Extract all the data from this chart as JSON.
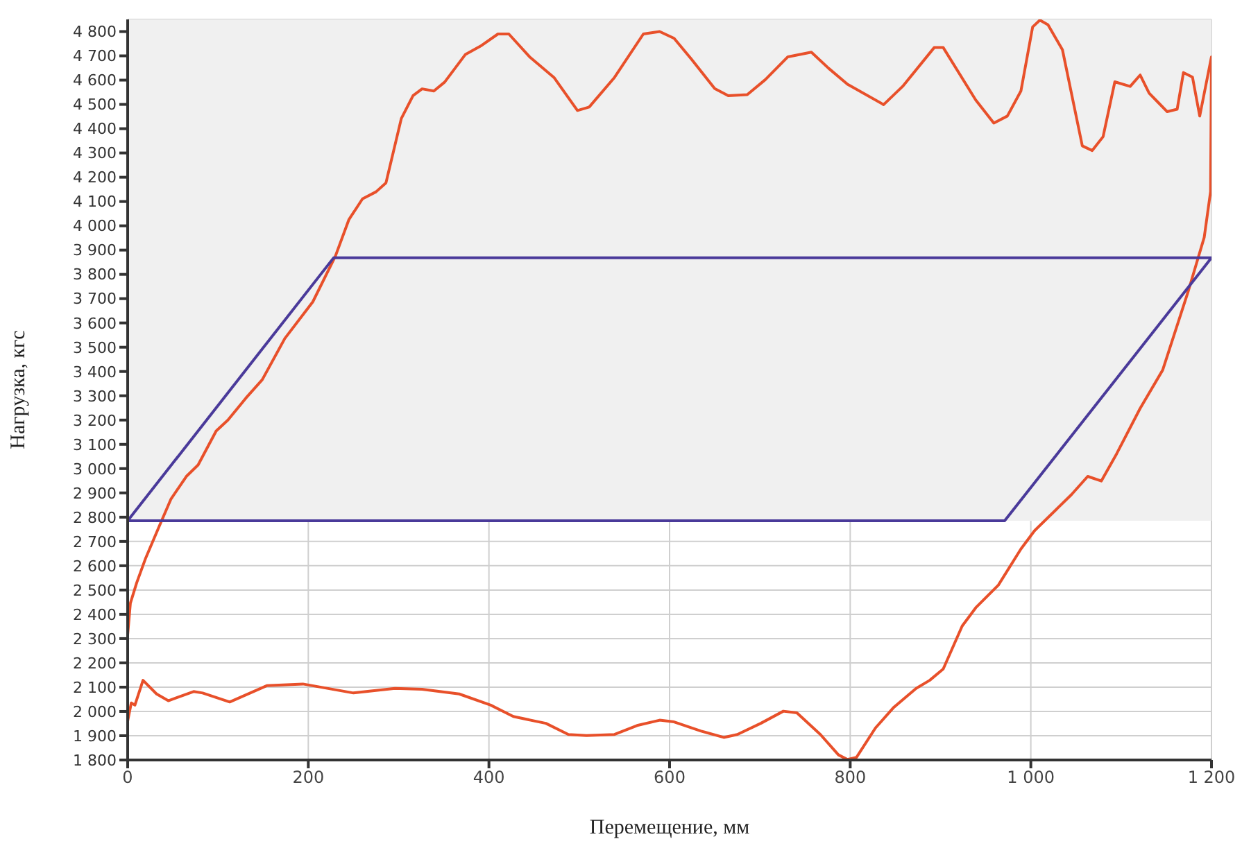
{
  "chart_data": {
    "type": "line",
    "xlabel": "Перемещение, мм",
    "ylabel": "Нагрузка, кгс",
    "xlim": [
      0,
      1200
    ],
    "ylim": [
      1800,
      4850
    ],
    "xticks": [
      0,
      200,
      400,
      600,
      800,
      {
        "value": 1000,
        "label": "1 000"
      },
      {
        "value": 1200,
        "label": "1 200"
      }
    ],
    "yticks": [
      {
        "value": 1800,
        "label": "1 800"
      },
      {
        "value": 1900,
        "label": "1 900"
      },
      {
        "value": 2000,
        "label": "2 000"
      },
      {
        "value": 2100,
        "label": "2 100"
      },
      {
        "value": 2200,
        "label": "2 200"
      },
      {
        "value": 2300,
        "label": "2 300"
      },
      {
        "value": 2400,
        "label": "2 400"
      },
      {
        "value": 2500,
        "label": "2 500"
      },
      {
        "value": 2600,
        "label": "2 600"
      },
      {
        "value": 2700,
        "label": "2 700"
      },
      {
        "value": 2800,
        "label": "2 800"
      },
      {
        "value": 2900,
        "label": "2 900"
      },
      {
        "value": 3000,
        "label": "3 000"
      },
      {
        "value": 3100,
        "label": "3 100"
      },
      {
        "value": 3200,
        "label": "3 200"
      },
      {
        "value": 3300,
        "label": "3 300"
      },
      {
        "value": 3400,
        "label": "3 400"
      },
      {
        "value": 3500,
        "label": "3 500"
      },
      {
        "value": 3600,
        "label": "3 600"
      },
      {
        "value": 3700,
        "label": "3 700"
      },
      {
        "value": 3800,
        "label": "3 800"
      },
      {
        "value": 3900,
        "label": "3 900"
      },
      {
        "value": 4000,
        "label": "4 000"
      },
      {
        "value": 4100,
        "label": "4 100"
      },
      {
        "value": 4200,
        "label": "4 200"
      },
      {
        "value": 4300,
        "label": "4 300"
      },
      {
        "value": 4400,
        "label": "4 400"
      },
      {
        "value": 4500,
        "label": "4 500"
      },
      {
        "value": 4600,
        "label": "4 600"
      },
      {
        "value": 4700,
        "label": "4 700"
      },
      {
        "value": 4800,
        "label": "4 800"
      }
    ],
    "grid": true,
    "marker": "none",
    "line_style": "solid",
    "bands": [
      {
        "axis": "y",
        "from": 2785,
        "to": 4850,
        "color": "#f0f0f0"
      }
    ],
    "series": [
      {
        "color": "#e8502a",
        "x": [
          0,
          4,
          8,
          17,
          32,
          45,
          73,
          83,
          113,
          154,
          194,
          250,
          296,
          326,
          367,
          402,
          427,
          463,
          488,
          508,
          539,
          564,
          589,
          605,
          635,
          660,
          675,
          701,
          726,
          741,
          767,
          787,
          797,
          807,
          828,
          848,
          873,
          888,
          903,
          924,
          939,
          964,
          989,
          1004,
          1045,
          1063,
          1078,
          1095,
          1121,
          1146,
          1174,
          1192,
          1199,
          1200,
          1187,
          1179,
          1169,
          1162,
          1151,
          1141,
          1131,
          1121,
          1110,
          1093,
          1080,
          1068,
          1057,
          1035,
          1019,
          1010,
          1002,
          989,
          974,
          959,
          939,
          903,
          893,
          858,
          837,
          797,
          776,
          757,
          731,
          706,
          686,
          665,
          650,
          624,
          605,
          589,
          571,
          539,
          511,
          498,
          472,
          445,
          422,
          410,
          392,
          374,
          351,
          339,
          326,
          316,
          303,
          286,
          275,
          260,
          245,
          230,
          205,
          174,
          149,
          131,
          111,
          98,
          78,
          65,
          48,
          35,
          20,
          10,
          3,
          0,
          0
        ],
        "values": [
          1960,
          2035,
          2026,
          2128,
          2072,
          2044,
          2082,
          2076,
          2039,
          2106,
          2113,
          2076,
          2095,
          2091,
          2072,
          2026,
          1979,
          1951,
          1905,
          1901,
          1905,
          1942,
          1964,
          1957,
          1919,
          1893,
          1905,
          1951,
          2001,
          1994,
          1905,
          1821,
          1802,
          1811,
          1932,
          2016,
          2095,
          2128,
          2175,
          2352,
          2427,
          2520,
          2669,
          2744,
          2893,
          2968,
          2949,
          3061,
          3248,
          3406,
          3727,
          3953,
          4141,
          4696,
          4452,
          4612,
          4631,
          4480,
          4470,
          4508,
          4546,
          4621,
          4574,
          4593,
          4367,
          4310,
          4329,
          4725,
          4828,
          4847,
          4819,
          4555,
          4452,
          4423,
          4518,
          4734,
          4734,
          4574,
          4499,
          4583,
          4649,
          4715,
          4696,
          4602,
          4540,
          4536,
          4565,
          4687,
          4772,
          4800,
          4790,
          4611,
          4489,
          4475,
          4611,
          4696,
          4790,
          4790,
          4743,
          4706,
          4592,
          4555,
          4564,
          4536,
          4442,
          4177,
          4140,
          4111,
          4026,
          3875,
          3687,
          3536,
          3366,
          3291,
          3200,
          3155,
          3015,
          2968,
          2875,
          2763,
          2632,
          2530,
          2446,
          2315,
          2054
        ]
      },
      {
        "color": "#4a3a9a",
        "x": [
          0,
          228,
          1200
        ],
        "values": [
          2785,
          3868,
          3868
        ]
      },
      {
        "color": "#4a3a9a",
        "x": [
          0,
          971,
          1200
        ],
        "values": [
          2785,
          2785,
          3868
        ]
      }
    ]
  }
}
